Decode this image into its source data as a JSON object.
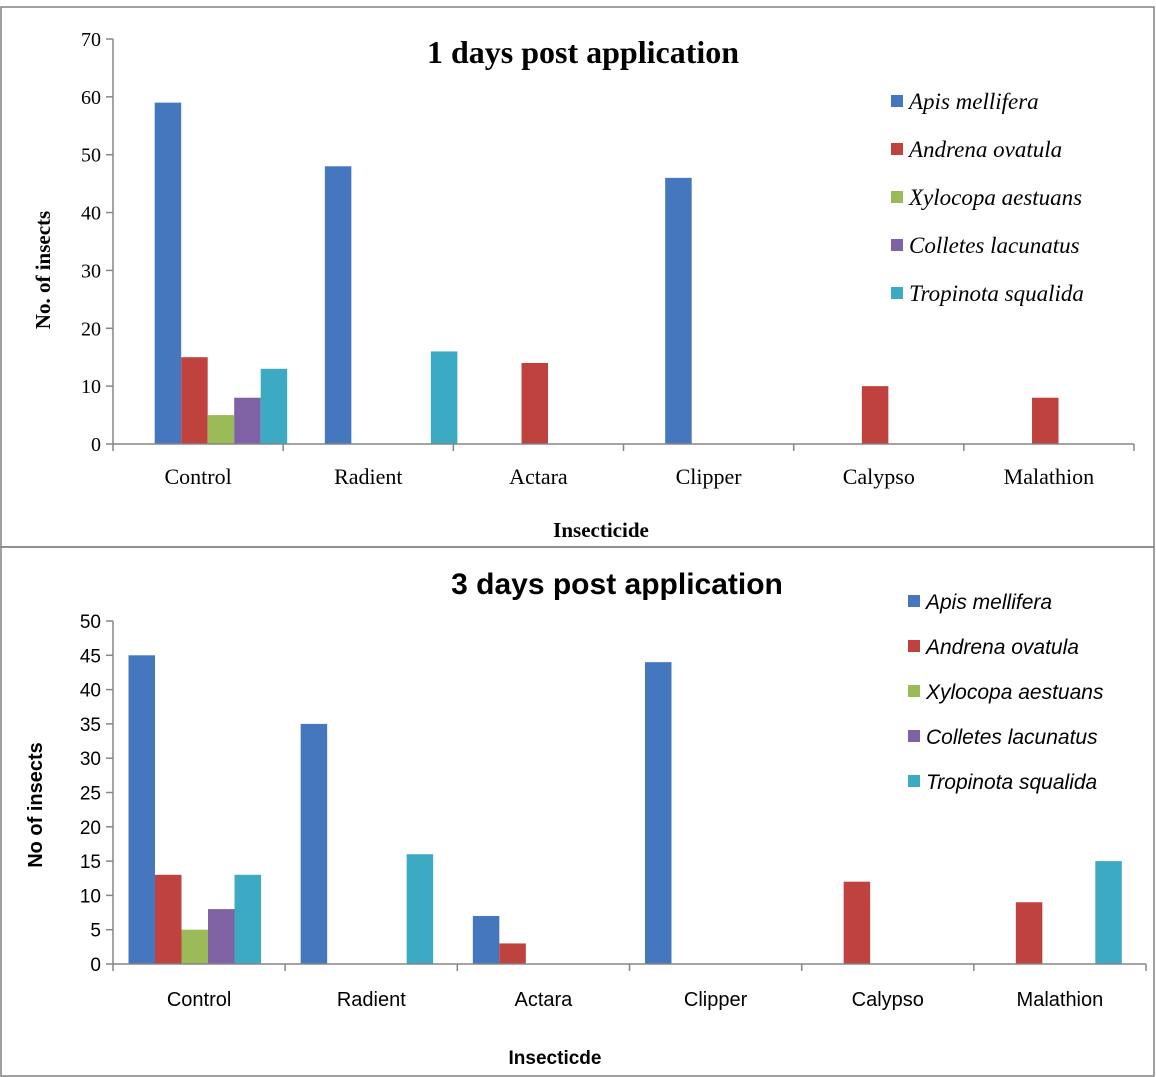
{
  "chart_data": [
    {
      "type": "bar",
      "title": "1 days post application",
      "xlabel": "Insecticide",
      "ylabel": "No. of insects",
      "ylim": [
        0,
        70
      ],
      "ytick_step": 10,
      "grid": false,
      "legend_position": "top-right",
      "categories": [
        "Control",
        "Radient",
        "Actara",
        "Clipper",
        "Calypso",
        "Malathion"
      ],
      "series": [
        {
          "name": "Apis mellifera",
          "color": "#4477BD",
          "values": [
            59,
            48,
            0,
            46,
            0,
            0
          ]
        },
        {
          "name": "Andrena ovatula",
          "color": "#C0423F",
          "values": [
            15,
            0,
            14,
            0,
            10,
            8
          ]
        },
        {
          "name": "Xylocopa aestuans",
          "color": "#9BBB59",
          "values": [
            5,
            0,
            0,
            0,
            0,
            0
          ]
        },
        {
          "name": "Colletes lacunatus",
          "color": "#7F62A3",
          "values": [
            8,
            0,
            0,
            0,
            0,
            0
          ]
        },
        {
          "name": "Tropinota squalida",
          "color": "#3DAAC4",
          "values": [
            13,
            16,
            0,
            0,
            0,
            0
          ]
        }
      ]
    },
    {
      "type": "bar",
      "title": "3 days post application",
      "xlabel": "Insecticde",
      "ylabel": "No of insects",
      "ylim": [
        0,
        50
      ],
      "ytick_step": 5,
      "grid": false,
      "legend_position": "top-right",
      "categories": [
        "Control",
        "Radient",
        "Actara",
        "Clipper",
        "Calypso",
        "Malathion"
      ],
      "series": [
        {
          "name": "Apis mellifera",
          "color": "#4477BD",
          "values": [
            45,
            35,
            7,
            44,
            0,
            0
          ]
        },
        {
          "name": "Andrena ovatula",
          "color": "#C0423F",
          "values": [
            13,
            0,
            3,
            0,
            12,
            9
          ]
        },
        {
          "name": "Xylocopa aestuans",
          "color": "#9BBB59",
          "values": [
            5,
            0,
            0,
            0,
            0,
            0
          ]
        },
        {
          "name": "Colletes lacunatus",
          "color": "#7F62A3",
          "values": [
            8,
            0,
            0,
            0,
            0,
            0
          ]
        },
        {
          "name": "Tropinota squalida",
          "color": "#3DAAC4",
          "values": [
            13,
            16,
            0,
            0,
            0,
            15
          ]
        }
      ]
    }
  ]
}
